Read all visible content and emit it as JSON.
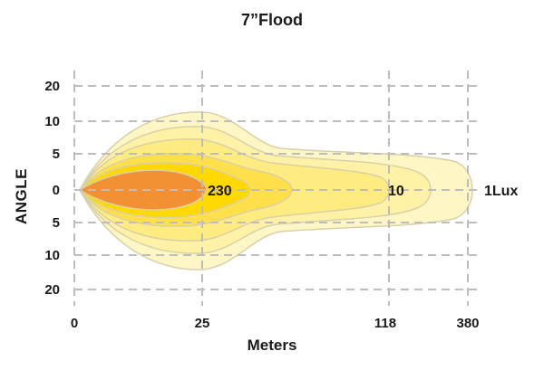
{
  "chart_data": {
    "type": "area",
    "title": "7”Flood",
    "xlabel": "Meters",
    "ylabel": "ANGLE",
    "x_ticks": [
      "0",
      "25",
      "118",
      "380"
    ],
    "y_ticks": [
      "20",
      "10",
      "5",
      "0",
      "5",
      "10",
      "20"
    ],
    "grid": true,
    "isolux_labels": [
      {
        "name": "230",
        "value": 230
      },
      {
        "name": "10",
        "value": 10
      },
      {
        "name": "1Lux",
        "value": 1
      }
    ],
    "colors": {
      "core": "#f39034",
      "inner": "#ffd900",
      "mid": "#ffe04a",
      "outer1": "#ffec80",
      "outer2": "#fff1a6",
      "outer3": "#fff6c6",
      "outline": "#d8d0a8",
      "grid": "#bdbdbd"
    }
  }
}
